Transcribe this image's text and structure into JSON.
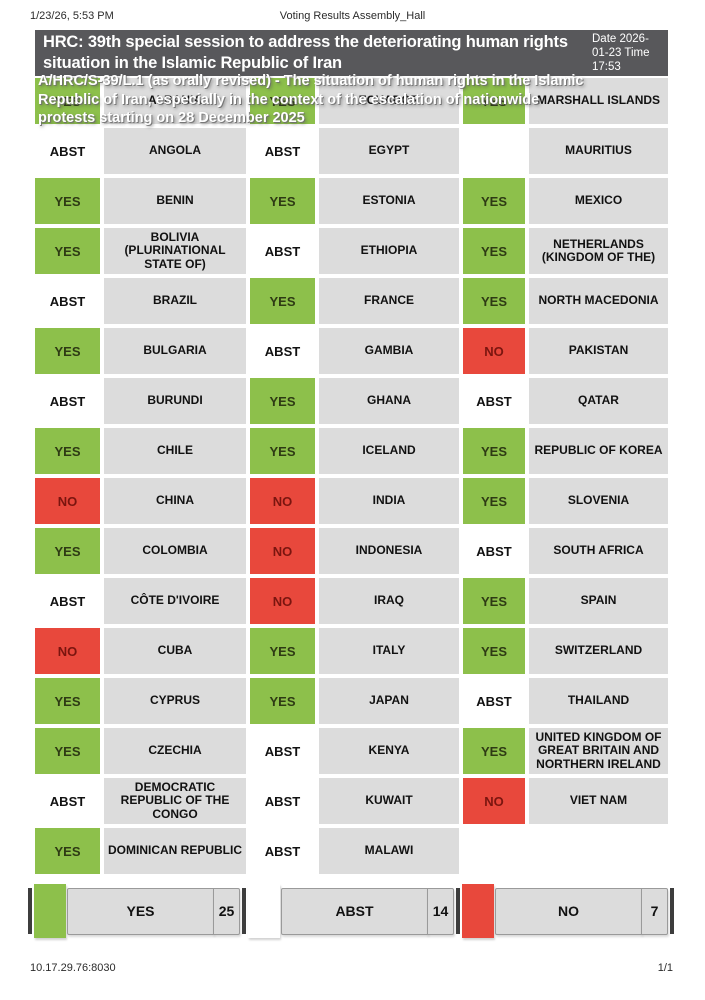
{
  "print_header": {
    "datetime": "1/23/26, 5:53 PM",
    "document_title": "Voting Results Assembly_Hall"
  },
  "print_footer": {
    "address": "10.17.29.76:8030",
    "page_number": "1/1"
  },
  "header": {
    "title": "HRC: 39th special session to address the deteriorating human rights situation in the Islamic Republic of Iran",
    "datetime": "Date 2026-01-23 Time 17:53"
  },
  "resolution": {
    "subtitle": "A/HRC/S-39/L.1 (as orally revised) - The situation of human rights in the Islamic Republic of Iran, especially in the context of the escalation of nationwide protests starting on 28 December 2025"
  },
  "colors": {
    "yes": "#8dc04b",
    "no": "#e8483c",
    "abstain": "#ffffff",
    "country_cell": "#dcdcdc",
    "title_bar": "#58585b"
  },
  "votes": {
    "rows": [
      [
        {
          "country": "ALBANIA",
          "vote": "YES"
        },
        {
          "country": "ECUADOR",
          "vote": "YES"
        },
        {
          "country": "MARSHALL ISLANDS",
          "vote": "YES"
        }
      ],
      [
        {
          "country": "ANGOLA",
          "vote": "ABST"
        },
        {
          "country": "EGYPT",
          "vote": "ABST"
        },
        {
          "country": "MAURITIUS",
          "vote": ""
        }
      ],
      [
        {
          "country": "BENIN",
          "vote": "YES"
        },
        {
          "country": "ESTONIA",
          "vote": "YES"
        },
        {
          "country": "MEXICO",
          "vote": "YES"
        }
      ],
      [
        {
          "country": "BOLIVIA (PLURINATIONAL STATE OF)",
          "vote": "YES"
        },
        {
          "country": "ETHIOPIA",
          "vote": "ABST"
        },
        {
          "country": "NETHERLANDS (KINGDOM OF THE)",
          "vote": "YES"
        }
      ],
      [
        {
          "country": "BRAZIL",
          "vote": "ABST"
        },
        {
          "country": "FRANCE",
          "vote": "YES"
        },
        {
          "country": "NORTH MACEDONIA",
          "vote": "YES"
        }
      ],
      [
        {
          "country": "BULGARIA",
          "vote": "YES"
        },
        {
          "country": "GAMBIA",
          "vote": "ABST"
        },
        {
          "country": "PAKISTAN",
          "vote": "NO"
        }
      ],
      [
        {
          "country": "BURUNDI",
          "vote": "ABST"
        },
        {
          "country": "GHANA",
          "vote": "YES"
        },
        {
          "country": "QATAR",
          "vote": "ABST"
        }
      ],
      [
        {
          "country": "CHILE",
          "vote": "YES"
        },
        {
          "country": "ICELAND",
          "vote": "YES"
        },
        {
          "country": "REPUBLIC OF KOREA",
          "vote": "YES"
        }
      ],
      [
        {
          "country": "CHINA",
          "vote": "NO"
        },
        {
          "country": "INDIA",
          "vote": "NO"
        },
        {
          "country": "SLOVENIA",
          "vote": "YES"
        }
      ],
      [
        {
          "country": "COLOMBIA",
          "vote": "YES"
        },
        {
          "country": "INDONESIA",
          "vote": "NO"
        },
        {
          "country": "SOUTH AFRICA",
          "vote": "ABST"
        }
      ],
      [
        {
          "country": "CÔTE D'IVOIRE",
          "vote": "ABST"
        },
        {
          "country": "IRAQ",
          "vote": "NO"
        },
        {
          "country": "SPAIN",
          "vote": "YES"
        }
      ],
      [
        {
          "country": "CUBA",
          "vote": "NO"
        },
        {
          "country": "ITALY",
          "vote": "YES"
        },
        {
          "country": "SWITZERLAND",
          "vote": "YES"
        }
      ],
      [
        {
          "country": "CYPRUS",
          "vote": "YES"
        },
        {
          "country": "JAPAN",
          "vote": "YES"
        },
        {
          "country": "THAILAND",
          "vote": "ABST"
        }
      ],
      [
        {
          "country": "CZECHIA",
          "vote": "YES"
        },
        {
          "country": "KENYA",
          "vote": "ABST"
        },
        {
          "country": "UNITED KINGDOM OF GREAT BRITAIN AND NORTHERN IRELAND",
          "vote": "YES"
        }
      ],
      [
        {
          "country": "DEMOCRATIC REPUBLIC OF THE CONGO",
          "vote": "ABST"
        },
        {
          "country": "KUWAIT",
          "vote": "ABST"
        },
        {
          "country": "VIET NAM",
          "vote": "NO"
        }
      ],
      [
        {
          "country": "DOMINICAN REPUBLIC",
          "vote": "YES"
        },
        {
          "country": "MALAWI",
          "vote": "ABST"
        },
        null
      ]
    ]
  },
  "summary": [
    {
      "label": "YES",
      "count": "25",
      "color": "#8dc04b"
    },
    {
      "label": "ABST",
      "count": "14",
      "color": "#ffffff"
    },
    {
      "label": "NO",
      "count": "7",
      "color": "#e8483c"
    }
  ]
}
